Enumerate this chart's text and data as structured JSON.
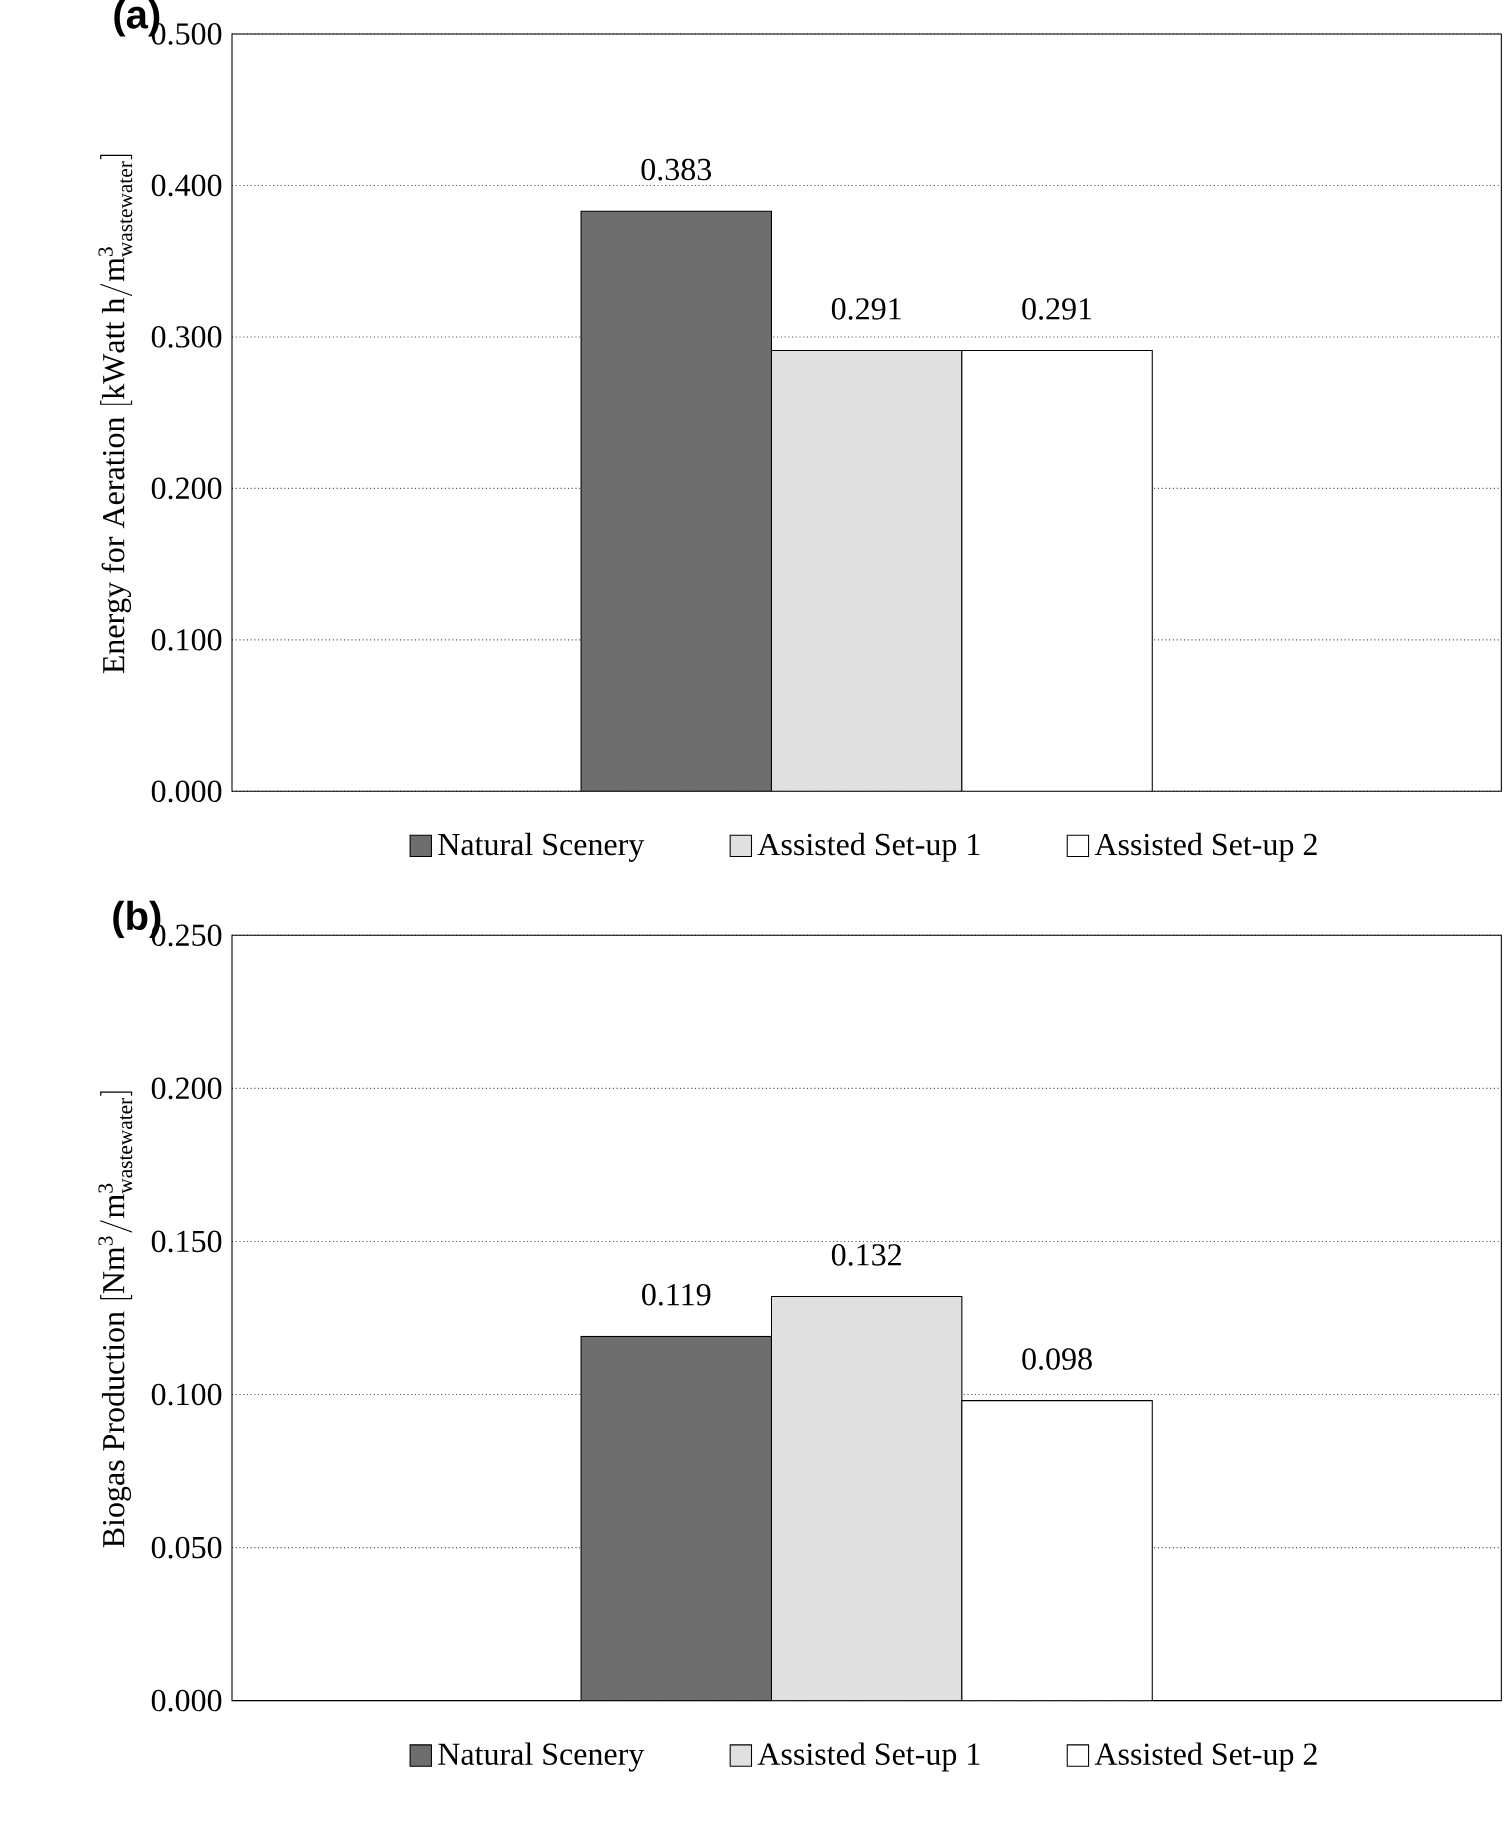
{
  "chart_data": [
    {
      "type": "bar",
      "title": "(a)",
      "ylabel": "\\mathrm{Energy\\ for\\ Aeration\\ [kWatt\\ h/m^{3}_{wastewater}]}",
      "categories": [
        null
      ],
      "series": [
        {
          "name": "Natural Scenery",
          "color": "#6e6e6e",
          "values": [
            0.383
          ]
        },
        {
          "name": "Assisted Set-up 1",
          "color": "#e0e0e0",
          "values": [
            0.291
          ]
        },
        {
          "name": "Assisted Set-up 2",
          "color": "#ffffff",
          "values": [
            0.291
          ]
        }
      ],
      "ylim": [
        0,
        0.5
      ],
      "yticks": [
        {
          "value": 0,
          "label": "0.000"
        },
        {
          "value": 0.1,
          "label": "0.100"
        },
        {
          "value": 0.2,
          "label": "0.200"
        },
        {
          "value": 0.3,
          "label": "0.300"
        },
        {
          "value": 0.4,
          "label": "0.400"
        },
        {
          "value": 0.5,
          "label": "0.500"
        }
      ],
      "grid": "y",
      "legend": "bottom",
      "data_labels": true
    },
    {
      "type": "bar",
      "title": "(b)",
      "ylabel": "\\mathrm{Biogas\\ Production\\ [Nm^{3}/m^{3}_{wastewater}]}",
      "categories": [
        null
      ],
      "series": [
        {
          "name": "Natural Scenery",
          "color": "#6e6e6e",
          "values": [
            0.119
          ]
        },
        {
          "name": "Assisted Set-up 1",
          "color": "#e0e0e0",
          "values": [
            0.132
          ]
        },
        {
          "name": "Assisted Set-up 2",
          "color": "#ffffff",
          "values": [
            0.098
          ]
        }
      ],
      "ylim": [
        0,
        0.25
      ],
      "yticks": [
        {
          "value": 0,
          "label": "0.000"
        },
        {
          "value": 0.05,
          "label": "0.050"
        },
        {
          "value": 0.1,
          "label": "0.100"
        },
        {
          "value": 0.15,
          "label": "0.150"
        },
        {
          "value": 0.2,
          "label": "0.200"
        },
        {
          "value": 0.25,
          "label": "0.250"
        }
      ],
      "grid": "y",
      "legend": "bottom",
      "data_labels": true
    }
  ]
}
